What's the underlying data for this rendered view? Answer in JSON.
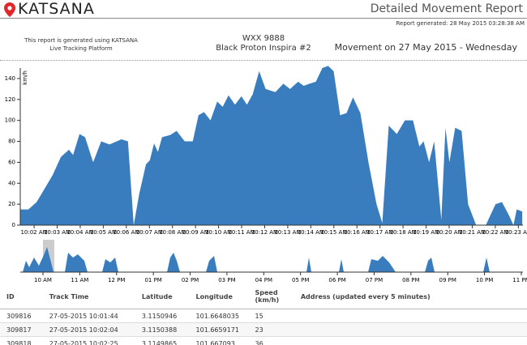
{
  "header": {
    "logo": "KATSANA",
    "title": "Detailed Movement Report",
    "generated": "Report generated: 28 May 2015 03:28:38 AM"
  },
  "info": {
    "platform_line1": "This report is generated using KATSANA",
    "platform_line2": "Live Tracking Platform",
    "plate": "WXX 9888",
    "vehicle": "Black Proton Inspira #2",
    "movement": "Movement on 27 May 2015 - Wednesday"
  },
  "chart_data": {
    "type": "area",
    "y_label": "km/h",
    "color": "#3a7dbf",
    "x": [
      601.4,
      601.75,
      602.11,
      602.46,
      602.81,
      603.16,
      603.51,
      603.69,
      603.97,
      604.21,
      604.56,
      604.91,
      605.27,
      605.79,
      606.07,
      606.32,
      606.56,
      606.85,
      607.02,
      607.2,
      607.37,
      607.55,
      607.9,
      608.18,
      608.53,
      608.88,
      609.13,
      609.37,
      609.65,
      609.94,
      610.18,
      610.43,
      610.71,
      610.99,
      611.23,
      611.48,
      611.76,
      612.04,
      612.46,
      612.81,
      613.1,
      613.45,
      613.69,
      613.94,
      614.22,
      614.5,
      614.75,
      614.99,
      615.27,
      615.55,
      615.83,
      616.15,
      616.5,
      616.85,
      617.1,
      617.38,
      617.73,
      618.08,
      618.43,
      618.71,
      618.89,
      619.13,
      619.35,
      619.66,
      619.84,
      620.01,
      620.26,
      620.54,
      620.82,
      621.17,
      621.59,
      622.01,
      622.29,
      622.58,
      622.79,
      622.93,
      623.17
    ],
    "values": [
      15,
      15,
      22,
      35,
      48,
      65,
      72,
      67,
      87,
      84,
      60,
      80,
      77,
      82,
      80,
      0,
      30,
      58,
      62,
      78,
      70,
      84,
      86,
      90,
      80,
      80,
      105,
      108,
      100,
      118,
      113,
      124,
      115,
      123,
      115,
      125,
      147,
      130,
      127,
      135,
      130,
      137,
      133,
      135,
      137,
      150,
      152,
      147,
      105,
      107,
      122,
      107,
      60,
      20,
      2,
      95,
      87,
      100,
      100,
      75,
      80,
      60,
      80,
      5,
      93,
      60,
      93,
      90,
      20,
      0,
      0,
      20,
      22,
      10,
      0,
      15,
      13
    ],
    "xlim": [
      601.4,
      623.2
    ],
    "ylim": [
      0,
      150
    ],
    "xticks": [
      {
        "value": 602,
        "label": "10:02 AM"
      },
      {
        "value": 603,
        "label": "10:03 AM"
      },
      {
        "value": 604,
        "label": "10:04 AM"
      },
      {
        "value": 605,
        "label": "10:05 AM"
      },
      {
        "value": 606,
        "label": "10:06 AM"
      },
      {
        "value": 607,
        "label": "10:07 AM"
      },
      {
        "value": 608,
        "label": "10:08 AM"
      },
      {
        "value": 609,
        "label": "10:09 AM"
      },
      {
        "value": 610,
        "label": "10:10 AM"
      },
      {
        "value": 611,
        "label": "10:11 AM"
      },
      {
        "value": 612,
        "label": "10:12 AM"
      },
      {
        "value": 613,
        "label": "10:13 AM"
      },
      {
        "value": 614,
        "label": "10:14 AM"
      },
      {
        "value": 615,
        "label": "10:15 AM"
      },
      {
        "value": 616,
        "label": "10:16 AM"
      },
      {
        "value": 617,
        "label": "10:17 AM"
      },
      {
        "value": 618,
        "label": "10:18 AM"
      },
      {
        "value": 619,
        "label": "10:19 AM"
      },
      {
        "value": 620,
        "label": "10:20 AM"
      },
      {
        "value": 621,
        "label": "10:21 AM"
      },
      {
        "value": 622,
        "label": "10:22 AM"
      },
      {
        "value": 623,
        "label": "10:23 AM"
      }
    ],
    "yticks": [
      0,
      20,
      40,
      60,
      80,
      100,
      120,
      140
    ]
  },
  "overview": {
    "ticks": [
      "10 AM",
      "11 AM",
      "12 PM",
      "01 PM",
      "02 PM",
      "03 PM",
      "04 PM",
      "05 PM",
      "06 PM",
      "07 PM",
      "08 PM",
      "09 PM",
      "10 PM",
      "11 PM"
    ]
  },
  "table": {
    "headers": [
      "ID",
      "Track Time",
      "Latitude",
      "Longitude",
      "Speed (km/h)",
      "Address (updated every 5 minutes)"
    ],
    "rows": [
      [
        "309816",
        "27-05-2015 10:01:44",
        "3.1150946",
        "101.6648035",
        "15"
      ],
      [
        "309817",
        "27-05-2015 10:02:04",
        "3.1150388",
        "101.6659171",
        "23"
      ],
      [
        "309818",
        "27-05-2015 10:02:25",
        "3.1149865",
        "101.667093",
        "36"
      ]
    ]
  }
}
